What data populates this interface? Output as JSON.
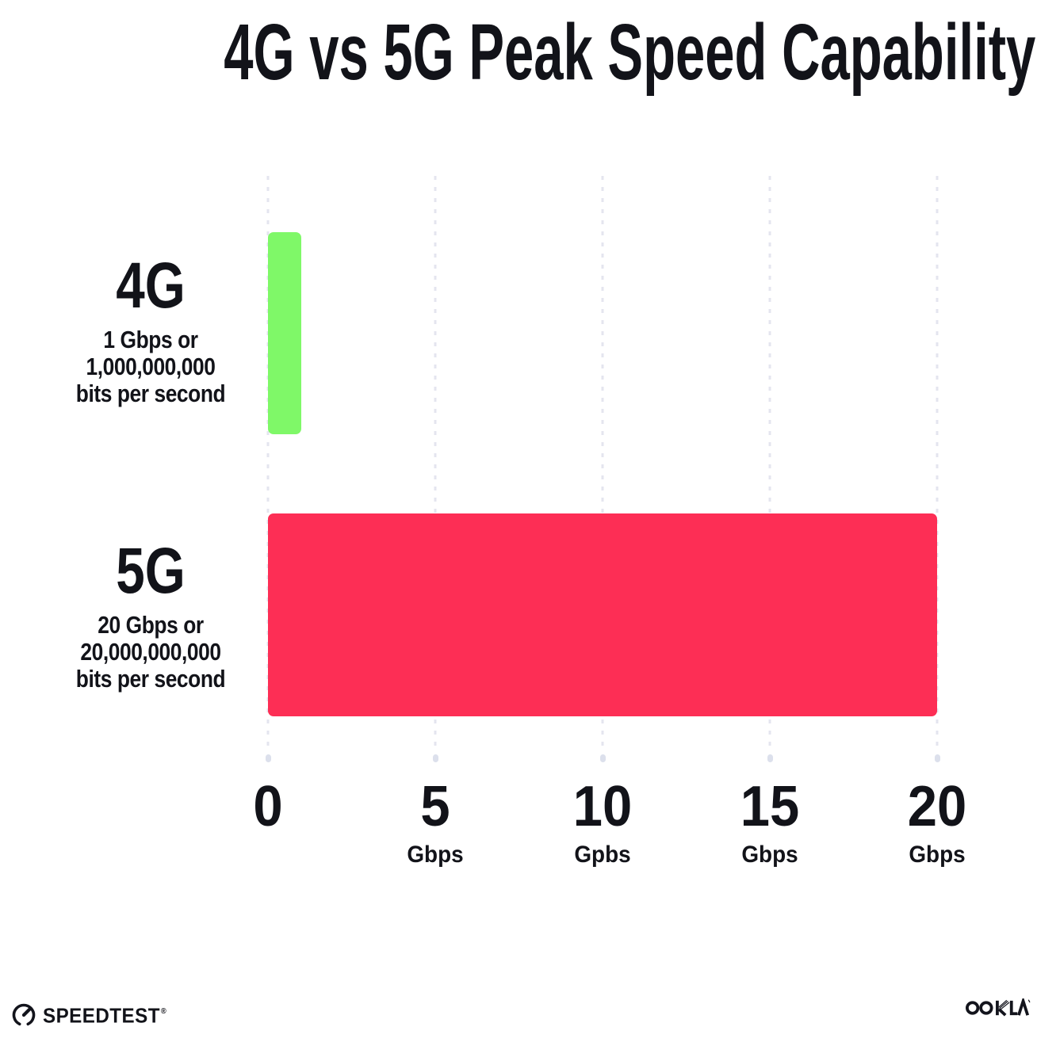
{
  "title": "4G vs 5G Peak Speed Capability",
  "rows": [
    {
      "label": "4G",
      "desc_lines": [
        "1 Gbps or",
        "1,000,000,000",
        "bits per second"
      ]
    },
    {
      "label": "5G",
      "desc_lines": [
        "20 Gbps or",
        "20,000,000,000",
        "bits per second"
      ]
    }
  ],
  "x_axis": {
    "ticks": [
      {
        "value": "0",
        "unit": ""
      },
      {
        "value": "5",
        "unit": "Gbps"
      },
      {
        "value": "10",
        "unit": "Gpbs"
      },
      {
        "value": "15",
        "unit": "Gbps"
      },
      {
        "value": "20",
        "unit": "Gbps"
      }
    ]
  },
  "footer": {
    "speedtest_label": "SPEEDTEST",
    "speedtest_reg": "®",
    "ookla_label": "OOKLA"
  },
  "colors": {
    "bar_4g": "#7FF868",
    "bar_5g": "#FD2E55",
    "text": "#121319",
    "gridline": "#E4E5EF"
  },
  "chart_data": {
    "type": "bar",
    "orientation": "horizontal",
    "title": "4G vs 5G Peak Speed Capability",
    "categories": [
      "4G",
      "5G"
    ],
    "values": [
      1,
      20
    ],
    "value_unit": "Gbps",
    "category_annotations": [
      "1 Gbps or 1,000,000,000 bits per second",
      "20 Gbps or 20,000,000,000 bits per second"
    ],
    "bar_colors": [
      "#7FF868",
      "#FD2E55"
    ],
    "xlim": [
      0,
      20
    ],
    "x_tick_values": [
      0,
      5,
      10,
      15,
      20
    ],
    "x_tick_unit_labels": [
      "",
      "Gbps",
      "Gpbs",
      "Gbps",
      "Gbps"
    ],
    "grid": "vertical-dotted",
    "legend": "none"
  }
}
